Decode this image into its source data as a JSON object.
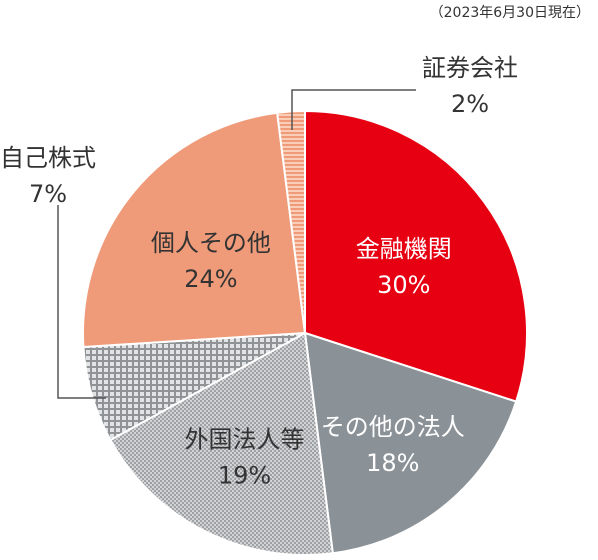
{
  "chart_data": {
    "type": "pie",
    "title": "",
    "as_of": "（2023年6月30日現在）",
    "slices": [
      {
        "name": "金融機関",
        "value": 30,
        "label": "30%",
        "color": "#e60012",
        "label_color": "#ffffff",
        "pattern": "solid"
      },
      {
        "name": "その他の法人",
        "value": 18,
        "label": "18%",
        "color": "#8a9197",
        "label_color": "#ffffff",
        "pattern": "solid"
      },
      {
        "name": "外国法人等",
        "value": 19,
        "label": "19%",
        "color": "#c7c8c9",
        "label_color": "#333333",
        "pattern": "dots"
      },
      {
        "name": "自己株式",
        "value": 7,
        "label": "7%",
        "color": "#bdbebf",
        "label_color": "#333333",
        "pattern": "grid"
      },
      {
        "name": "個人その他",
        "value": 24,
        "label": "24%",
        "color": "#ef9b79",
        "label_color": "#333333",
        "pattern": "solid"
      },
      {
        "name": "証券会社",
        "value": 2,
        "label": "2%",
        "color": "#f5b79a",
        "label_color": "#333333",
        "pattern": "hstripes"
      }
    ],
    "legend": "none"
  }
}
